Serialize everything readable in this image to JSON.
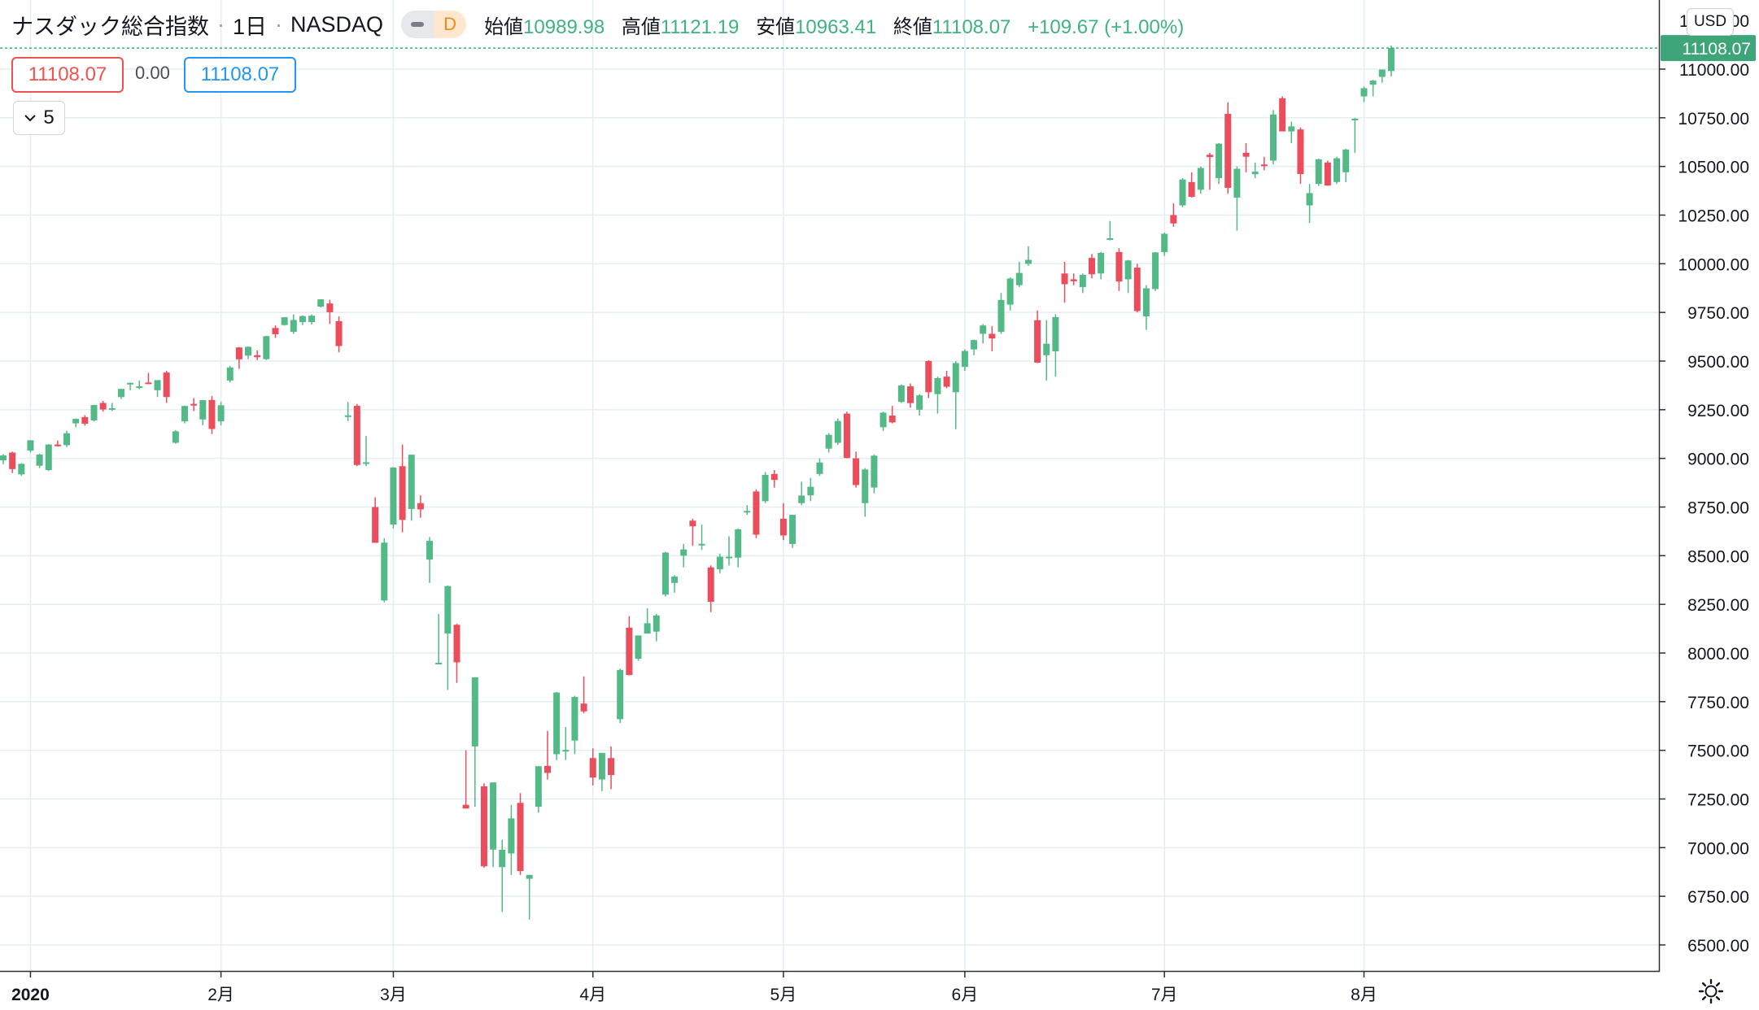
{
  "header": {
    "symbol_name": "ナスダック総合指数",
    "interval": "1日",
    "exchange": "NASDAQ",
    "toggle_label": "D",
    "open_label": "始値",
    "open_value": "10989.98",
    "high_label": "高値",
    "high_value": "11121.19",
    "low_label": "安値",
    "low_value": "10963.41",
    "close_label": "終値",
    "close_value": "11108.07",
    "change": "+109.67 (+1.00%)"
  },
  "trade": {
    "sell_price": "11108.07",
    "spread": "0.00",
    "buy_price": "11108.07"
  },
  "collapse_count": "5",
  "currency": "USD",
  "colors": {
    "up": "#53b987",
    "down": "#eb4d5c",
    "grid": "#e3eef3",
    "price_line": "#2fb37a",
    "price_label_bg": "#3da578"
  },
  "icons": [
    "chevron-down-icon",
    "settings-icon"
  ],
  "chart_data": {
    "type": "candlestick",
    "ylim": [
      6400,
      11250
    ],
    "y_ticks": [
      6500,
      6750,
      7000,
      7250,
      7500,
      7750,
      8000,
      8250,
      8500,
      8750,
      9000,
      9250,
      9500,
      9750,
      10000,
      10250,
      10500,
      10750,
      11000
    ],
    "y_tick_labels": [
      "6500.00",
      "6750.00",
      "7000.00",
      "7250.00",
      "7500.00",
      "7750.00",
      "8000.00",
      "8250.00",
      "8500.00",
      "8750.00",
      "9000.00",
      "9250.00",
      "9500.00",
      "9750.00",
      "10000.00",
      "10250.00",
      "10500.00",
      "10750.00",
      "11000.00"
    ],
    "y_top_partial_label": "11250.00",
    "x_labels": [
      {
        "date": "2020-01-02",
        "label": "2020"
      },
      {
        "date": "2020-02-03",
        "label": "2月"
      },
      {
        "date": "2020-03-02",
        "label": "3月"
      },
      {
        "date": "2020-04-01",
        "label": "4月"
      },
      {
        "date": "2020-05-01",
        "label": "5月"
      },
      {
        "date": "2020-06-01",
        "label": "6月"
      },
      {
        "date": "2020-07-01",
        "label": "7月"
      },
      {
        "date": "2020-08-03",
        "label": "8月"
      }
    ],
    "last_price": 11108.07,
    "last_price_label": "11108.07",
    "columns": [
      "date",
      "open",
      "high",
      "low",
      "close"
    ],
    "candles": [
      [
        "2019-12-27",
        8990,
        9022,
        8970,
        9015
      ],
      [
        "2019-12-30",
        9030,
        9035,
        8925,
        8945
      ],
      [
        "2019-12-31",
        8918,
        8975,
        8910,
        8972
      ],
      [
        "2020-01-02",
        9040,
        9093,
        9030,
        9093
      ],
      [
        "2020-01-03",
        8962,
        9025,
        8950,
        9020
      ],
      [
        "2020-01-06",
        8940,
        9073,
        8935,
        9071
      ],
      [
        "2020-01-07",
        9071,
        9092,
        9060,
        9069
      ],
      [
        "2020-01-08",
        9068,
        9142,
        9058,
        9129
      ],
      [
        "2020-01-09",
        9180,
        9205,
        9160,
        9203
      ],
      [
        "2020-01-10",
        9212,
        9222,
        9168,
        9178
      ],
      [
        "2020-01-13",
        9195,
        9275,
        9190,
        9274
      ],
      [
        "2020-01-14",
        9285,
        9295,
        9240,
        9251
      ],
      [
        "2020-01-15",
        9253,
        9285,
        9243,
        9258
      ],
      [
        "2020-01-16",
        9315,
        9357,
        9305,
        9357
      ],
      [
        "2020-01-17",
        9380,
        9390,
        9350,
        9388
      ],
      [
        "2020-01-21",
        9362,
        9400,
        9355,
        9370
      ],
      [
        "2020-01-22",
        9390,
        9439,
        9382,
        9383
      ],
      [
        "2020-01-23",
        9350,
        9402,
        9315,
        9402
      ],
      [
        "2020-01-24",
        9441,
        9450,
        9285,
        9315
      ],
      [
        "2020-01-27",
        9080,
        9145,
        9075,
        9139
      ],
      [
        "2020-01-28",
        9190,
        9272,
        9180,
        9269
      ],
      [
        "2020-01-29",
        9280,
        9310,
        9243,
        9275
      ],
      [
        "2020-01-30",
        9200,
        9300,
        9170,
        9299
      ],
      [
        "2020-01-31",
        9300,
        9320,
        9125,
        9151
      ],
      [
        "2020-02-03",
        9190,
        9290,
        9170,
        9273
      ],
      [
        "2020-02-04",
        9400,
        9475,
        9390,
        9467
      ],
      [
        "2020-02-05",
        9570,
        9572,
        9460,
        9509
      ],
      [
        "2020-02-06",
        9528,
        9575,
        9510,
        9573
      ],
      [
        "2020-02-07",
        9530,
        9555,
        9505,
        9520
      ],
      [
        "2020-02-10",
        9510,
        9630,
        9505,
        9628
      ],
      [
        "2020-02-11",
        9670,
        9683,
        9619,
        9638
      ],
      [
        "2020-02-12",
        9685,
        9725,
        9682,
        9725
      ],
      [
        "2020-02-13",
        9650,
        9740,
        9640,
        9711
      ],
      [
        "2020-02-14",
        9700,
        9735,
        9685,
        9731
      ],
      [
        "2020-02-18",
        9700,
        9740,
        9687,
        9733
      ],
      [
        "2020-02-19",
        9780,
        9818,
        9775,
        9817
      ],
      [
        "2020-02-20",
        9796,
        9815,
        9690,
        9751
      ],
      [
        "2020-02-21",
        9705,
        9730,
        9545,
        9577
      ],
      [
        "2020-02-24",
        9220,
        9290,
        9192,
        9221
      ],
      [
        "2020-02-25",
        9270,
        9280,
        8960,
        8966
      ],
      [
        "2020-02-26",
        8980,
        9115,
        8960,
        8980
      ],
      [
        "2020-02-27",
        8750,
        8800,
        8566,
        8566
      ],
      [
        "2020-02-28",
        8270,
        8590,
        8260,
        8567
      ],
      [
        "2020-03-02",
        8660,
        8955,
        8640,
        8953
      ],
      [
        "2020-03-03",
        8960,
        9071,
        8620,
        8684
      ],
      [
        "2020-03-04",
        8740,
        9000,
        8680,
        9019
      ],
      [
        "2020-03-05",
        8770,
        8810,
        8695,
        8738
      ],
      [
        "2020-03-06",
        8480,
        8595,
        8360,
        8576
      ],
      [
        "2020-03-09",
        7950,
        8200,
        7943,
        7950
      ],
      [
        "2020-03-10",
        8100,
        8347,
        7810,
        8344
      ],
      [
        "2020-03-11",
        8145,
        8150,
        7847,
        7952
      ],
      [
        "2020-03-12",
        7220,
        7500,
        7207,
        7201
      ],
      [
        "2020-03-13",
        7520,
        7875,
        7210,
        7875
      ],
      [
        "2020-03-16",
        7315,
        7330,
        6896,
        6904
      ],
      [
        "2020-03-17",
        6990,
        7300,
        6900,
        7335
      ],
      [
        "2020-03-18",
        6900,
        7040,
        6670,
        6989
      ],
      [
        "2020-03-19",
        6970,
        7220,
        6860,
        7150
      ],
      [
        "2020-03-20",
        7230,
        7280,
        6860,
        6880
      ],
      [
        "2020-03-23",
        6840,
        6860,
        6630,
        6860
      ],
      [
        "2020-03-24",
        7210,
        7420,
        7180,
        7418
      ],
      [
        "2020-03-25",
        7420,
        7600,
        7350,
        7384
      ],
      [
        "2020-03-26",
        7480,
        7800,
        7450,
        7797
      ],
      [
        "2020-03-27",
        7500,
        7620,
        7450,
        7502
      ],
      [
        "2020-03-30",
        7550,
        7780,
        7480,
        7774
      ],
      [
        "2020-03-31",
        7740,
        7880,
        7690,
        7700
      ],
      [
        "2020-04-01",
        7460,
        7510,
        7320,
        7360
      ],
      [
        "2020-04-02",
        7350,
        7480,
        7290,
        7487
      ],
      [
        "2020-04-03",
        7460,
        7520,
        7300,
        7373
      ],
      [
        "2020-04-06",
        7660,
        7920,
        7640,
        7913
      ],
      [
        "2020-04-07",
        8130,
        8190,
        7885,
        7887
      ],
      [
        "2020-04-08",
        7970,
        8090,
        7960,
        8090
      ],
      [
        "2020-04-09",
        8100,
        8230,
        8110,
        8153
      ],
      [
        "2020-04-13",
        8110,
        8200,
        8060,
        8193
      ],
      [
        "2020-04-14",
        8300,
        8520,
        8290,
        8516
      ],
      [
        "2020-04-15",
        8360,
        8400,
        8310,
        8393
      ],
      [
        "2020-04-16",
        8500,
        8560,
        8440,
        8532
      ],
      [
        "2020-04-17",
        8680,
        8690,
        8550,
        8651
      ],
      [
        "2020-04-20",
        8560,
        8660,
        8530,
        8561
      ],
      [
        "2020-04-21",
        8440,
        8450,
        8210,
        8263
      ],
      [
        "2020-04-22",
        8430,
        8510,
        8410,
        8495
      ],
      [
        "2020-04-23",
        8490,
        8600,
        8450,
        8495
      ],
      [
        "2020-04-24",
        8490,
        8640,
        8440,
        8635
      ],
      [
        "2020-04-27",
        8730,
        8760,
        8710,
        8730
      ],
      [
        "2020-04-28",
        8830,
        8840,
        8590,
        8608
      ],
      [
        "2020-04-29",
        8780,
        8930,
        8770,
        8915
      ],
      [
        "2020-04-30",
        8920,
        8940,
        8850,
        8889
      ],
      [
        "2020-05-01",
        8690,
        8770,
        8580,
        8604
      ],
      [
        "2020-05-04",
        8560,
        8710,
        8540,
        8710
      ],
      [
        "2020-05-05",
        8770,
        8880,
        8760,
        8809
      ],
      [
        "2020-05-06",
        8810,
        8900,
        8780,
        8854
      ],
      [
        "2020-05-07",
        8920,
        9000,
        8910,
        8979
      ],
      [
        "2020-05-08",
        9050,
        9130,
        9030,
        9121
      ],
      [
        "2020-05-11",
        9080,
        9205,
        9070,
        9192
      ],
      [
        "2020-05-12",
        9230,
        9240,
        9000,
        9002
      ],
      [
        "2020-05-13",
        9000,
        9035,
        8850,
        8863
      ],
      [
        "2020-05-14",
        8770,
        8950,
        8700,
        8943
      ],
      [
        "2020-05-15",
        8850,
        9020,
        8820,
        9014
      ],
      [
        "2020-05-18",
        9160,
        9240,
        9140,
        9235
      ],
      [
        "2020-05-19",
        9220,
        9270,
        9180,
        9185
      ],
      [
        "2020-05-20",
        9290,
        9380,
        9285,
        9375
      ],
      [
        "2020-05-21",
        9370,
        9385,
        9260,
        9284
      ],
      [
        "2020-05-22",
        9250,
        9330,
        9220,
        9324
      ],
      [
        "2020-05-26",
        9500,
        9505,
        9310,
        9340
      ],
      [
        "2020-05-27",
        9330,
        9420,
        9230,
        9412
      ],
      [
        "2020-05-28",
        9420,
        9450,
        9360,
        9368
      ],
      [
        "2020-05-29",
        9340,
        9500,
        9150,
        9490
      ],
      [
        "2020-06-01",
        9470,
        9560,
        9450,
        9552
      ],
      [
        "2020-06-02",
        9560,
        9610,
        9530,
        9608
      ],
      [
        "2020-06-03",
        9640,
        9690,
        9590,
        9683
      ],
      [
        "2020-06-04",
        9640,
        9680,
        9550,
        9616
      ],
      [
        "2020-06-05",
        9650,
        9850,
        9640,
        9814
      ],
      [
        "2020-06-08",
        9790,
        9930,
        9760,
        9924
      ],
      [
        "2020-06-09",
        9890,
        10010,
        9880,
        9953
      ],
      [
        "2020-06-10",
        10000,
        10090,
        9990,
        10020
      ],
      [
        "2020-06-11",
        9710,
        9760,
        9490,
        9492
      ],
      [
        "2020-06-12",
        9530,
        9710,
        9400,
        9589
      ],
      [
        "2020-06-15",
        9550,
        9740,
        9420,
        9726
      ],
      [
        "2020-06-16",
        9950,
        10010,
        9800,
        9895
      ],
      [
        "2020-06-17",
        9920,
        9950,
        9890,
        9910
      ],
      [
        "2020-06-18",
        9880,
        9950,
        9850,
        9943
      ],
      [
        "2020-06-19",
        10030,
        10050,
        9925,
        9946
      ],
      [
        "2020-06-22",
        9950,
        10060,
        9920,
        10056
      ],
      [
        "2020-06-23",
        10130,
        10220,
        10120,
        10131
      ],
      [
        "2020-06-24",
        10060,
        10080,
        9860,
        9909
      ],
      [
        "2020-06-25",
        9920,
        10020,
        9850,
        10017
      ],
      [
        "2020-06-26",
        9980,
        10000,
        9750,
        9757
      ],
      [
        "2020-06-29",
        9730,
        9890,
        9660,
        9874
      ],
      [
        "2020-06-30",
        9870,
        10060,
        9860,
        10058
      ],
      [
        "2020-07-01",
        10060,
        10160,
        10040,
        10154
      ],
      [
        "2020-07-02",
        10250,
        10310,
        10190,
        10207
      ],
      [
        "2020-07-06",
        10300,
        10440,
        10290,
        10433
      ],
      [
        "2020-07-07",
        10420,
        10470,
        10340,
        10344
      ],
      [
        "2020-07-08",
        10380,
        10500,
        10360,
        10492
      ],
      [
        "2020-07-09",
        10560,
        10570,
        10380,
        10548
      ],
      [
        "2020-07-10",
        10440,
        10620,
        10410,
        10617
      ],
      [
        "2020-07-13",
        10770,
        10830,
        10360,
        10390
      ],
      [
        "2020-07-14",
        10340,
        10500,
        10170,
        10488
      ],
      [
        "2020-07-15",
        10570,
        10620,
        10470,
        10550
      ],
      [
        "2020-07-16",
        10460,
        10520,
        10440,
        10473
      ],
      [
        "2020-07-17",
        10510,
        10550,
        10480,
        10503
      ],
      [
        "2020-07-20",
        10530,
        10790,
        10510,
        10767
      ],
      [
        "2020-07-21",
        10850,
        10860,
        10680,
        10680
      ],
      [
        "2020-07-22",
        10680,
        10730,
        10620,
        10706
      ],
      [
        "2020-07-23",
        10690,
        10700,
        10410,
        10461
      ],
      [
        "2020-07-24",
        10300,
        10410,
        10210,
        10363
      ],
      [
        "2020-07-27",
        10410,
        10540,
        10400,
        10536
      ],
      [
        "2020-07-28",
        10520,
        10530,
        10400,
        10402
      ],
      [
        "2020-07-29",
        10420,
        10550,
        10410,
        10542
      ],
      [
        "2020-07-30",
        10470,
        10590,
        10420,
        10587
      ],
      [
        "2020-07-31",
        10740,
        10750,
        10570,
        10745
      ],
      [
        "2020-08-03",
        10860,
        10910,
        10830,
        10902
      ],
      [
        "2020-08-04",
        10920,
        10945,
        10860,
        10941
      ],
      [
        "2020-08-05",
        10960,
        10990,
        10930,
        10998
      ],
      [
        "2020-08-06",
        10990,
        11121,
        10963,
        11108
      ]
    ]
  }
}
